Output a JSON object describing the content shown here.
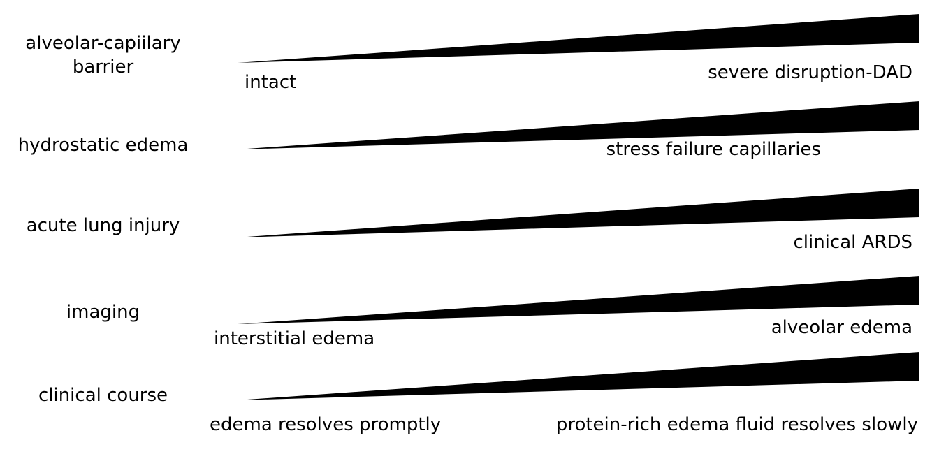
{
  "colors": {
    "wedge_fill": "#000000",
    "text": "#000000",
    "background": "#ffffff"
  },
  "rows": [
    {
      "label": "alveolar-capiilary barrier",
      "left_text": "intact",
      "right_text": "severe disruption-DAD"
    },
    {
      "label": "hydrostatic edema",
      "left_text": "",
      "right_text": "stress failure capillaries"
    },
    {
      "label": "acute lung injury",
      "left_text": "",
      "right_text": "clinical ARDS"
    },
    {
      "label": "imaging",
      "left_text": "interstitial edema",
      "right_text": "alveolar edema"
    },
    {
      "label": "clinical course",
      "left_text": "edema resolves promptly",
      "right_text": "protein-rich edema fluid resolves slowly"
    }
  ]
}
